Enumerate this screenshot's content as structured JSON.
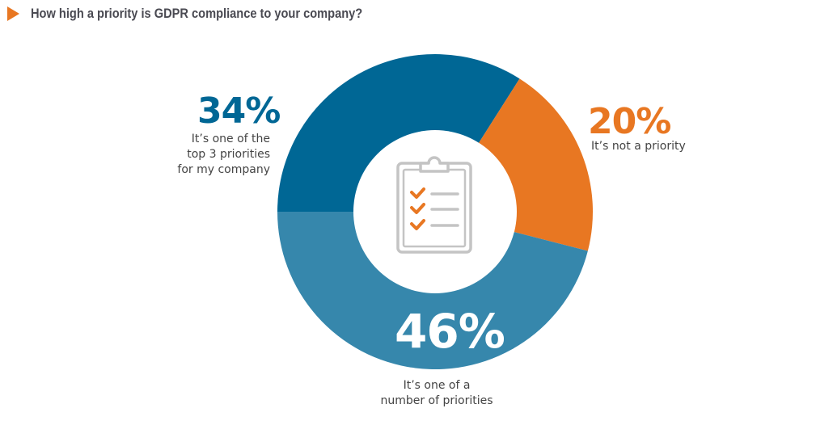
{
  "title": "How high a priority is GDPR compliance to your company?",
  "icon": "clipboard-checklist-icon",
  "colors": {
    "dark_blue": "#006795",
    "light_blue": "#3687AC",
    "orange": "#E87722",
    "icon_gray": "#C4C4C4"
  },
  "chart_data": {
    "type": "pie",
    "donut": true,
    "title": "How high a priority is GDPR compliance to your company?",
    "slices": [
      {
        "pct_label": "34%",
        "value": 34,
        "label_lines": [
          "It’s one of the",
          "top 3 priorities",
          "for my company"
        ],
        "color": "#006795"
      },
      {
        "pct_label": "20%",
        "value": 20,
        "label_lines": [
          "It’s not a priority"
        ],
        "color": "#E87722"
      },
      {
        "pct_label": "46%",
        "value": 46,
        "label_lines": [
          "It’s one of a",
          "number of priorities"
        ],
        "color": "#3687AC"
      }
    ]
  }
}
